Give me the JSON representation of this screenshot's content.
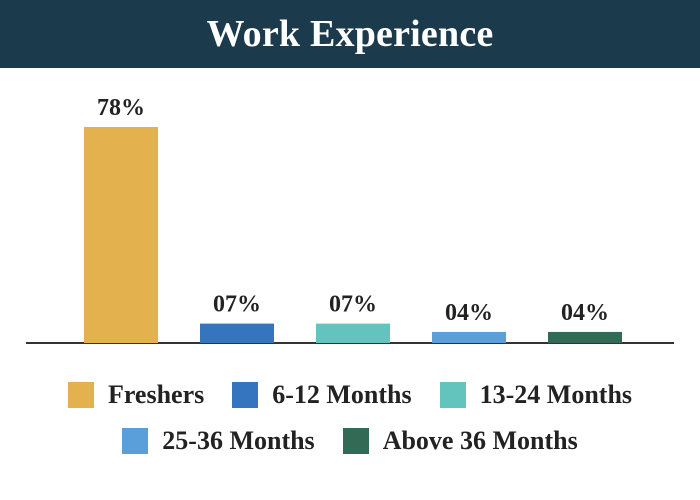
{
  "chart_data": {
    "type": "bar",
    "title": "Work Experience",
    "categories": [
      "Freshers",
      "6-12 Months",
      "13-24 Months",
      "25-36 Months",
      "Above 36 Months"
    ],
    "values": [
      78,
      7,
      7,
      4,
      4
    ],
    "data_labels": [
      "78%",
      "07%",
      "07%",
      "04%",
      "04%"
    ],
    "colors": [
      "#e3b24e",
      "#3575c0",
      "#63c3bd",
      "#5a9fd9",
      "#336a55"
    ],
    "xlabel": "",
    "ylabel": "",
    "ylim": [
      0,
      100
    ],
    "grid": false,
    "legend_position": "bottom"
  },
  "legend_rows": [
    [
      0,
      1,
      2
    ],
    [
      3,
      4
    ]
  ]
}
